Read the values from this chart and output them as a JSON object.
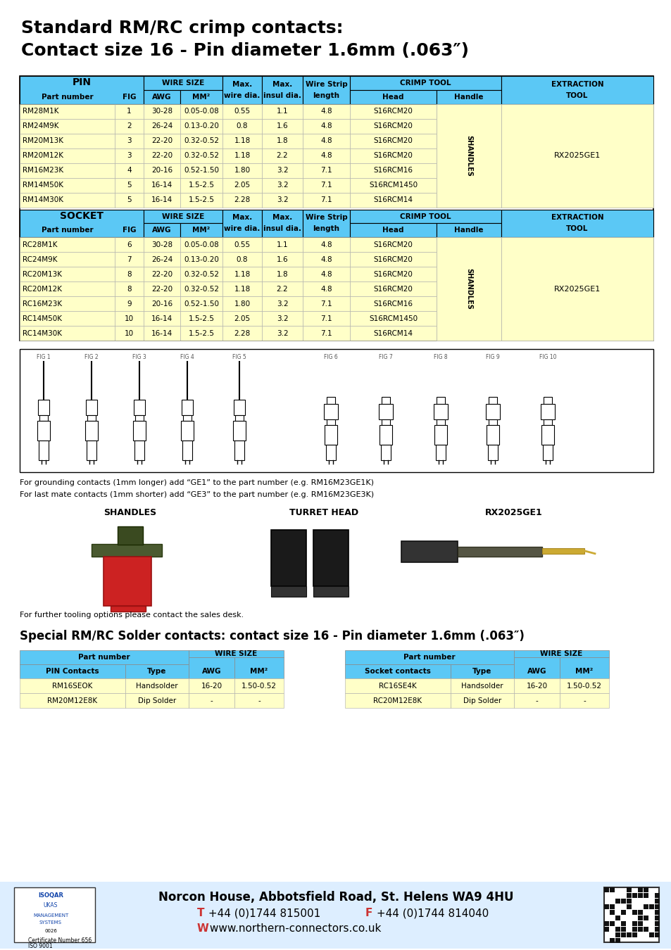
{
  "title_line1": "Standard RM/RC crimp contacts:",
  "title_line2": "Contact size 16 - Pin diameter 1.6mm (.063″)",
  "bg_color": "#ffffff",
  "header_blue": "#5bc8f5",
  "row_yellow": "#ffffc8",
  "pin_rows": [
    [
      "RM28M1K",
      "1",
      "30-28",
      "0.05-0.08",
      "0.55",
      "1.1",
      "4.8",
      "S16RCM20"
    ],
    [
      "RM24M9K",
      "2",
      "26-24",
      "0.13-0.20",
      "0.8",
      "1.6",
      "4.8",
      "S16RCM20"
    ],
    [
      "RM20M13K",
      "3",
      "22-20",
      "0.32-0.52",
      "1.18",
      "1.8",
      "4.8",
      "S16RCM20"
    ],
    [
      "RM20M12K",
      "3",
      "22-20",
      "0.32-0.52",
      "1.18",
      "2.2",
      "4.8",
      "S16RCM20"
    ],
    [
      "RM16M23K",
      "4",
      "20-16",
      "0.52-1.50",
      "1.80",
      "3.2",
      "7.1",
      "S16RCM16"
    ],
    [
      "RM14M50K",
      "5",
      "16-14",
      "1.5-2.5",
      "2.05",
      "3.2",
      "7.1",
      "S16RCM1450"
    ],
    [
      "RM14M30K",
      "5",
      "16-14",
      "1.5-2.5",
      "2.28",
      "3.2",
      "7.1",
      "S16RCM14"
    ]
  ],
  "socket_rows": [
    [
      "RC28M1K",
      "6",
      "30-28",
      "0.05-0.08",
      "0.55",
      "1.1",
      "4.8",
      "S16RCM20"
    ],
    [
      "RC24M9K",
      "7",
      "26-24",
      "0.13-0.20",
      "0.8",
      "1.6",
      "4.8",
      "S16RCM20"
    ],
    [
      "RC20M13K",
      "8",
      "22-20",
      "0.32-0.52",
      "1.18",
      "1.8",
      "4.8",
      "S16RCM20"
    ],
    [
      "RC20M12K",
      "8",
      "22-20",
      "0.32-0.52",
      "1.18",
      "2.2",
      "4.8",
      "S16RCM20"
    ],
    [
      "RC16M23K",
      "9",
      "20-16",
      "0.52-1.50",
      "1.80",
      "3.2",
      "7.1",
      "S16RCM16"
    ],
    [
      "RC14M50K",
      "10",
      "16-14",
      "1.5-2.5",
      "2.05",
      "3.2",
      "7.1",
      "S16RCM1450"
    ],
    [
      "RC14M30K",
      "10",
      "16-14",
      "1.5-2.5",
      "2.28",
      "3.2",
      "7.1",
      "S16RCM14"
    ]
  ],
  "note1": "For grounding contacts (1mm longer) add “GE1” to the part number (e.g. RM16M23GE1K)",
  "note2": "For last mate contacts (1mm shorter) add “GE3” to the part number (e.g. RM16M23GE3K)",
  "tool_note": "For further tooling options please contact the sales desk.",
  "special_title": "Special RM/RC Solder contacts: contact size 16 - Pin diameter 1.6mm (.063″)",
  "solder_pin_rows": [
    [
      "RM16SEOK",
      "Handsolder",
      "16-20",
      "1.50-0.52"
    ],
    [
      "RM20M12E8K",
      "Dip Solder",
      "-",
      "-"
    ]
  ],
  "solder_socket_rows": [
    [
      "RC16SE4K",
      "Handsolder",
      "16-20",
      "1.50-0.52"
    ],
    [
      "RC20M12E8K",
      "Dip Solder",
      "-",
      "-"
    ]
  ],
  "footer_line1": "Norcon House, Abbotsfield Road, St. Helens WA9 4HU",
  "footer_line2_t": "T",
  "footer_line2_f": "F",
  "footer_line2_w": "W",
  "footer_line2_tel": " +44 (0)1744 815001   ",
  "footer_line2_fax": " +44 (0)1744 814040",
  "footer_line3": " www.northern-connectors.co.uk",
  "fig_labels": [
    "FIG 1",
    "FIG 2",
    "FIG 3",
    "FIG 4",
    "FIG 5",
    "FIG 6",
    "FIG 7",
    "FIG 8",
    "FIG 9",
    "FIG 10"
  ],
  "shandles_label": "SHANDLES",
  "turret_label": "TURRET HEAD",
  "rx_label": "RX2025GE1"
}
